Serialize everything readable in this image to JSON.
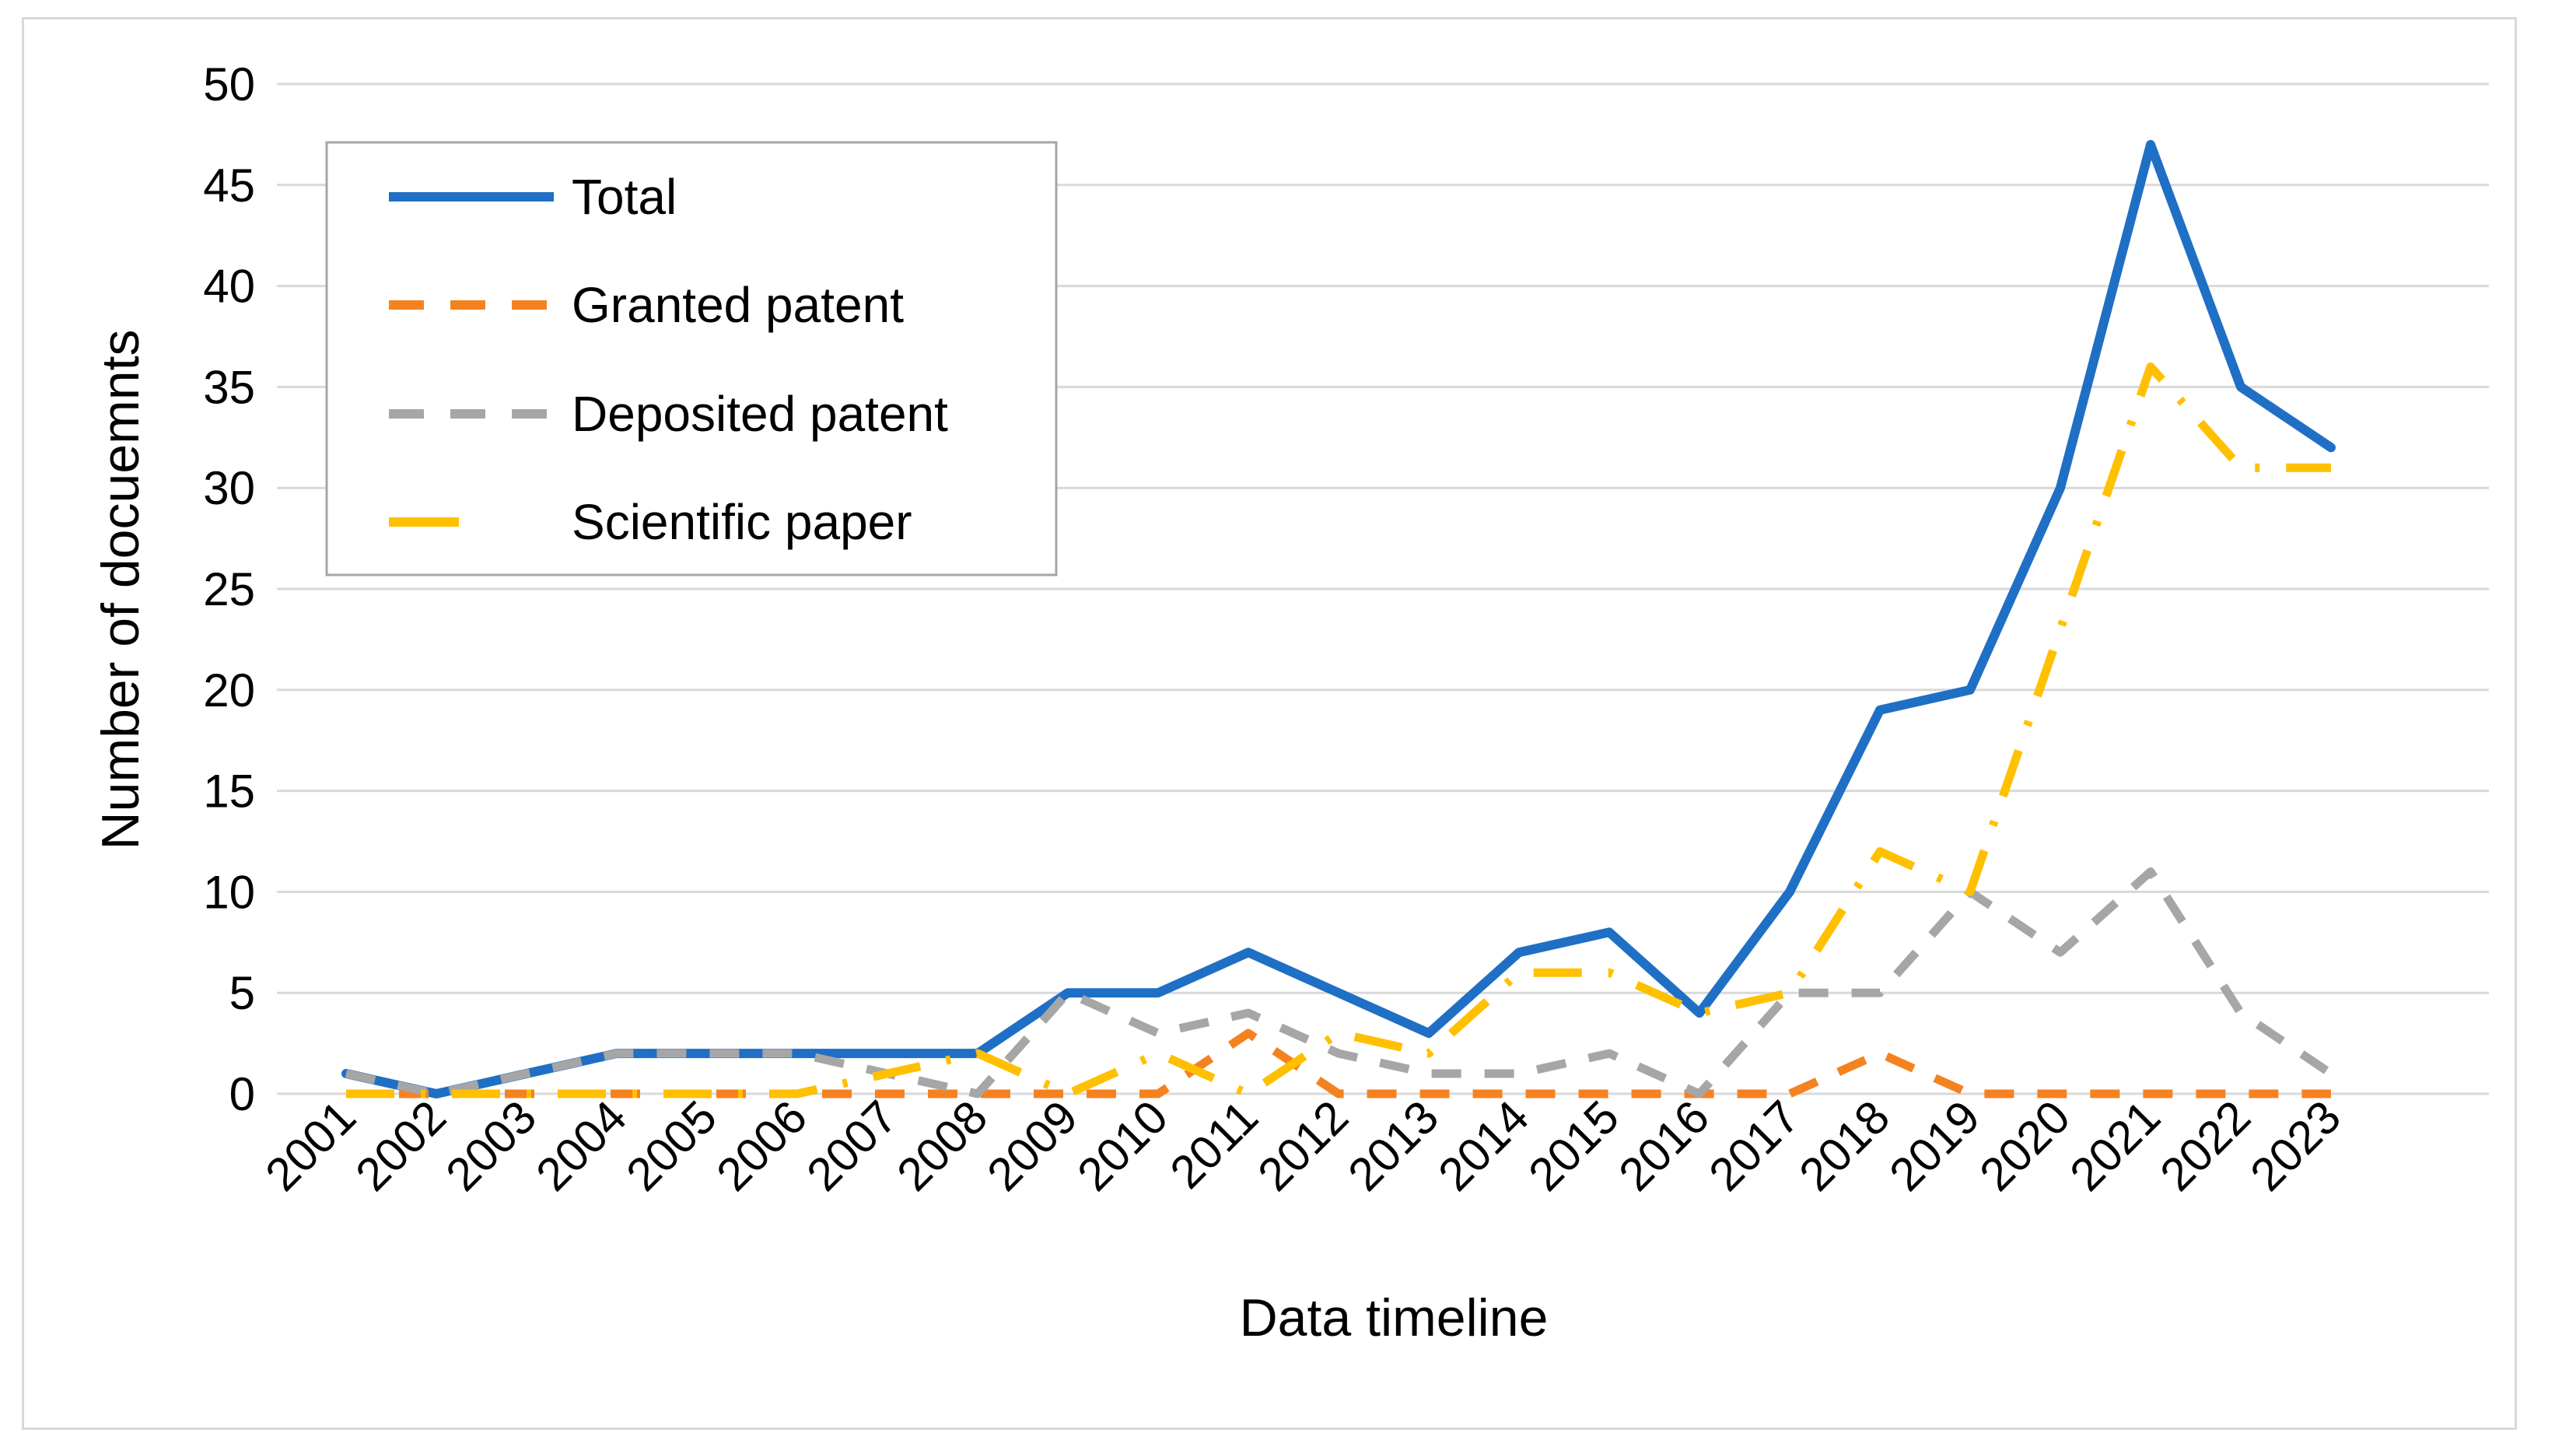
{
  "chart_data": {
    "type": "line",
    "title": "",
    "xlabel": "Data timeline",
    "ylabel": "Number of docuemnts",
    "categories": [
      "2001",
      "2002",
      "2003",
      "2004",
      "2005",
      "2006",
      "2007",
      "2008",
      "2009",
      "2010",
      "2011",
      "2012",
      "2013",
      "2014",
      "2015",
      "2016",
      "2017",
      "2018",
      "2019",
      "2020",
      "2021",
      "2022",
      "2023"
    ],
    "yticks": [
      "0",
      "5",
      "10",
      "15",
      "20",
      "25",
      "30",
      "35",
      "40",
      "45",
      "50"
    ],
    "ylim": [
      0,
      50
    ],
    "grid": true,
    "legend_position": "top-left",
    "series": [
      {
        "name": "Total",
        "color": "#1f6fc5",
        "style": "solid",
        "values": [
          1,
          0,
          1,
          2,
          2,
          2,
          2,
          2,
          5,
          5,
          7,
          5,
          3,
          7,
          8,
          4,
          10,
          19,
          20,
          30,
          47,
          35,
          32
        ]
      },
      {
        "name": "Granted patent",
        "color": "#f58220",
        "style": "dash",
        "values": [
          0,
          0,
          0,
          0,
          0,
          0,
          0,
          0,
          0,
          0,
          3,
          0,
          0,
          0,
          0,
          0,
          0,
          2,
          0,
          0,
          0,
          0,
          0
        ]
      },
      {
        "name": "Deposited patent",
        "color": "#a6a6a6",
        "style": "dash",
        "values": [
          1,
          0,
          1,
          2,
          2,
          2,
          1,
          0,
          5,
          3,
          4,
          2,
          1,
          1,
          2,
          0,
          5,
          5,
          10,
          7,
          11,
          4,
          1
        ]
      },
      {
        "name": "Scientific paper",
        "color": "#ffc000",
        "style": "dashdot",
        "values": [
          0,
          0,
          0,
          0,
          0,
          0,
          1,
          2,
          0,
          2,
          0,
          3,
          2,
          6,
          6,
          4,
          5,
          12,
          10,
          23,
          36,
          31,
          31
        ]
      }
    ]
  }
}
